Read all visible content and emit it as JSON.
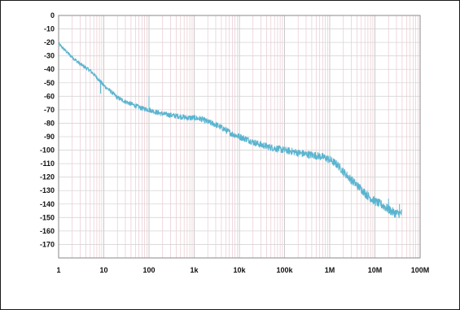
{
  "chart_data": {
    "type": "line",
    "title": "",
    "xlabel": "",
    "ylabel": "",
    "x_scale": "log",
    "xlim": [
      1,
      100000000
    ],
    "ylim": [
      -180,
      0
    ],
    "grid": true,
    "x_ticks": [
      {
        "value": 1,
        "label": "1"
      },
      {
        "value": 10,
        "label": "10"
      },
      {
        "value": 100,
        "label": "100"
      },
      {
        "value": 1000,
        "label": "1k"
      },
      {
        "value": 10000,
        "label": "10k"
      },
      {
        "value": 100000,
        "label": "100k"
      },
      {
        "value": 1000000,
        "label": "1M"
      },
      {
        "value": 10000000,
        "label": "10M"
      },
      {
        "value": 100000000,
        "label": "100M"
      }
    ],
    "y_ticks": [
      {
        "value": 0,
        "label": "0"
      },
      {
        "value": -10,
        "label": "-10"
      },
      {
        "value": -20,
        "label": "-20"
      },
      {
        "value": -30,
        "label": "-30"
      },
      {
        "value": -40,
        "label": "-40"
      },
      {
        "value": -50,
        "label": "-50"
      },
      {
        "value": -60,
        "label": "-60"
      },
      {
        "value": -70,
        "label": "-70"
      },
      {
        "value": -80,
        "label": "-80"
      },
      {
        "value": -90,
        "label": "-90"
      },
      {
        "value": -100,
        "label": "-100"
      },
      {
        "value": -110,
        "label": "-110"
      },
      {
        "value": -120,
        "label": "-120"
      },
      {
        "value": -130,
        "label": "-130"
      },
      {
        "value": -140,
        "label": "-140"
      },
      {
        "value": -150,
        "label": "-150"
      },
      {
        "value": -160,
        "label": "-160"
      },
      {
        "value": -170,
        "label": "-170"
      }
    ],
    "series": [
      {
        "color": "#5ab4cf",
        "x": [
          1,
          1.5,
          2,
          3,
          5,
          7,
          10,
          15,
          20,
          30,
          50,
          70,
          100,
          150,
          200,
          300,
          500,
          700,
          1000,
          1500,
          2000,
          3000,
          5000,
          7000,
          10000,
          15000,
          20000,
          30000,
          50000,
          70000,
          100000,
          150000,
          200000,
          300000,
          500000,
          700000,
          1000000,
          1500000,
          2000000,
          3000000,
          5000000,
          7000000,
          10000000,
          15000000,
          20000000,
          25000000,
          30000000,
          40000000
        ],
        "y": [
          -21,
          -27,
          -31,
          -36,
          -41,
          -46,
          -52,
          -57,
          -61,
          -64,
          -67,
          -69,
          -70,
          -72,
          -73,
          -74,
          -75,
          -76,
          -76,
          -77,
          -79,
          -81,
          -85,
          -88,
          -90,
          -92,
          -94,
          -96,
          -98,
          -99,
          -100,
          -101,
          -102,
          -103,
          -104,
          -105,
          -107,
          -111,
          -116,
          -122,
          -129,
          -134,
          -138,
          -141,
          -144,
          -146,
          -147,
          -147
        ]
      }
    ],
    "spikes": [
      {
        "x": 8.5,
        "y": -58
      },
      {
        "x": 100,
        "y": -60
      },
      {
        "x": 250000,
        "y": -100
      },
      {
        "x": 20000000,
        "y": -136
      },
      {
        "x": 35000000,
        "y": -140
      }
    ]
  }
}
